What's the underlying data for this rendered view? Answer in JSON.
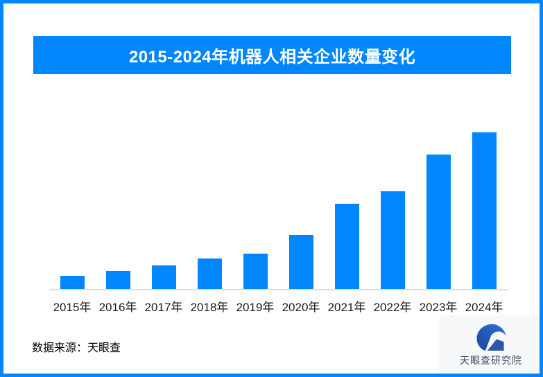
{
  "page": {
    "background": "#ffffff",
    "frame_border_color": "#0086ff"
  },
  "header": {
    "title": "2015-2024年机器人相关企业数量变化",
    "banner_color": "#0086ff",
    "text_color": "#ffffff"
  },
  "chart_data": {
    "type": "bar",
    "title": "2015-2024年机器人相关企业数量变化",
    "categories": [
      "2015年",
      "2016年",
      "2017年",
      "2018年",
      "2019年",
      "2020年",
      "2021年",
      "2022年",
      "2023年",
      "2024年"
    ],
    "values": [
      8.8,
      11.9,
      15.4,
      19.8,
      23.1,
      35.0,
      54.6,
      62.6,
      85.9,
      100
    ],
    "value_unit": "relative scale (tallest 2024 bar = 100); chart shows no numeric axis or data labels",
    "value_labels_shown": false,
    "xlabel": "",
    "ylabel": "",
    "ylim": [
      0,
      100
    ],
    "grid": false,
    "legend": false,
    "bar_color": "#0086ff",
    "axis_line_color": "#dfdfdf"
  },
  "footer": {
    "source_label": "数据来源：天眼查"
  },
  "logo": {
    "name": "天眼查研究院",
    "icon": "tianyancha-eagle-icon",
    "panel_bg": "#f7f8f9",
    "text_color": "#3b4c61",
    "icon_color_dark": "#1b4a97",
    "icon_color_light": "#2f6fd9",
    "icon_color_mid": "#2a57ab"
  }
}
